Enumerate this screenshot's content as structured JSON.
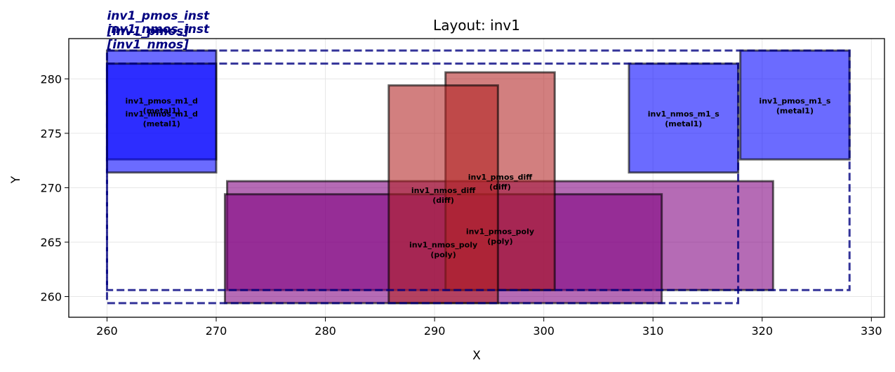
{
  "chart_data": {
    "type": "layout",
    "title": "Layout: inv1",
    "xlabel": "X",
    "ylabel": "Y",
    "xlim": [
      256.5,
      331.2
    ],
    "ylim": [
      258.1,
      283.7
    ],
    "xticks": [
      "260",
      "270",
      "280",
      "290",
      "300",
      "310",
      "320",
      "330"
    ],
    "yticks": [
      "260",
      "265",
      "270",
      "275",
      "280"
    ],
    "grid": true,
    "colors": {
      "metal1": "#0000ff",
      "diff": "#b22222",
      "poly": "#800080",
      "instance_outline": "#000080",
      "shape_edge": "#000000"
    },
    "instances": [
      {
        "name": "inv1_pmos_inst",
        "cell": "[inv1_pmos]",
        "x0": 260,
        "x1": 328,
        "y0": 260.6,
        "y1": 282.6
      },
      {
        "name": "inv1_nmos_inst",
        "cell": "[inv1_nmos]",
        "x0": 260,
        "x1": 317.8,
        "y0": 259.4,
        "y1": 281.4
      }
    ],
    "shapes": [
      {
        "name": "inv1_pmos_poly",
        "layer": "poly",
        "x0": 271,
        "x1": 321,
        "y0": 260.6,
        "y1": 270.6
      },
      {
        "name": "inv1_nmos_poly",
        "layer": "poly",
        "x0": 270.8,
        "x1": 310.8,
        "y0": 259.4,
        "y1": 269.4
      },
      {
        "name": "inv1_pmos_diff",
        "layer": "diff",
        "x0": 291,
        "x1": 301,
        "y0": 260.6,
        "y1": 280.6
      },
      {
        "name": "inv1_nmos_diff",
        "layer": "diff",
        "x0": 285.8,
        "x1": 295.8,
        "y0": 259.4,
        "y1": 279.4
      },
      {
        "name": "inv1_pmos_m1_d",
        "layer": "metal1",
        "x0": 260,
        "x1": 270,
        "y0": 272.6,
        "y1": 282.6
      },
      {
        "name": "inv1_nmos_m1_d",
        "layer": "metal1",
        "x0": 260,
        "x1": 270,
        "y0": 271.4,
        "y1": 281.4
      },
      {
        "name": "inv1_pmos_m1_s",
        "layer": "metal1",
        "x0": 318,
        "x1": 328,
        "y0": 272.6,
        "y1": 282.6
      },
      {
        "name": "inv1_nmos_m1_s",
        "layer": "metal1",
        "x0": 307.8,
        "x1": 317.8,
        "y0": 271.4,
        "y1": 281.4
      }
    ]
  }
}
